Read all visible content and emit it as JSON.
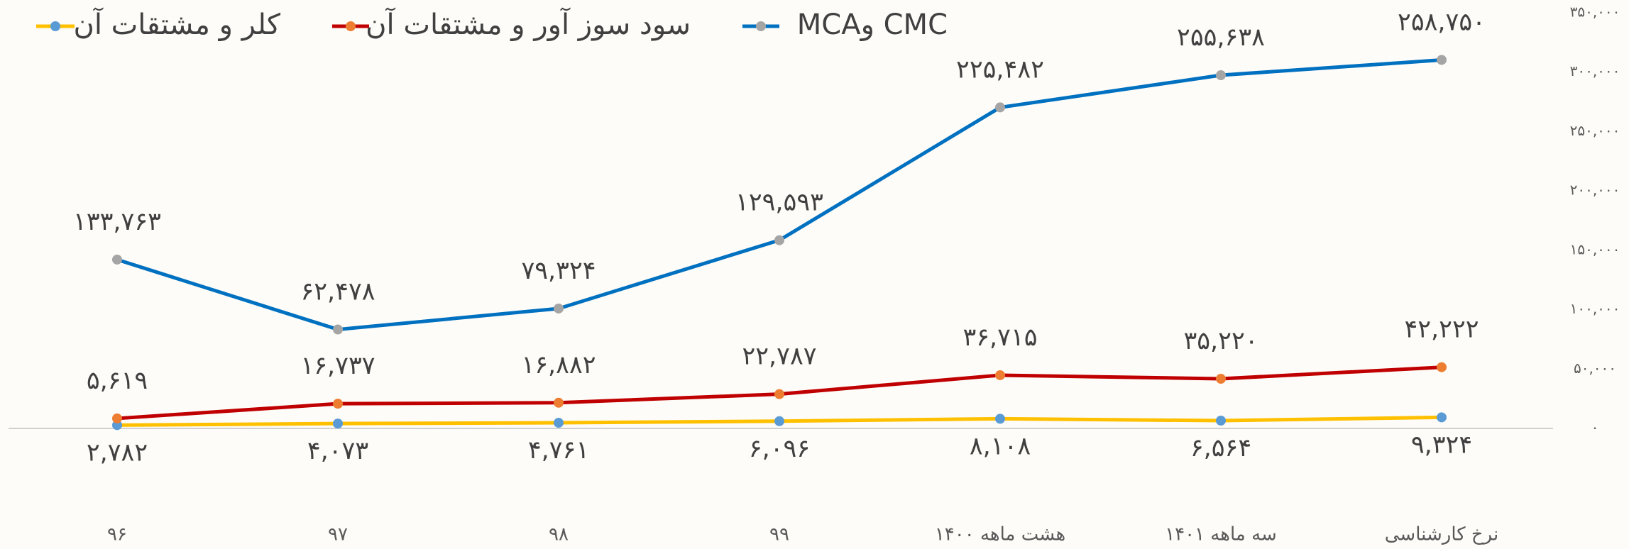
{
  "chart_data": {
    "type": "line",
    "stacked": true,
    "categories": [
      "۹۶",
      "۹۷",
      "۹۸",
      "۹۹",
      "هشت ماهه ۱۴۰۰",
      "سه ماهه ۱۴۰۱",
      "نرخ کارشناسی"
    ],
    "series": [
      {
        "name": "کلر و مشتقات آن",
        "color": "#ffc000",
        "marker_color": "#5b9bd5",
        "values": [
          2782,
          4073,
          4761,
          6096,
          8108,
          6564,
          9324
        ],
        "value_labels": [
          "۲,۷۸۲",
          "۴,۰۷۳",
          "۴,۷۶۱",
          "۶,۰۹۶",
          "۸,۱۰۸",
          "۶,۵۶۴",
          "۹,۳۲۴"
        ]
      },
      {
        "name": "سود سوز آور و مشتقات آن",
        "color": "#c00000",
        "marker_color": "#ed7d31",
        "values": [
          5619,
          16737,
          16882,
          22787,
          36715,
          35220,
          42222
        ],
        "value_labels": [
          "۵,۶۱۹",
          "۱۶,۷۳۷",
          "۱۶,۸۸۲",
          "۲۲,۷۸۷",
          "۳۶,۷۱۵",
          "۳۵,۲۲۰",
          "۴۲,۲۲۲"
        ]
      },
      {
        "name": "MCAو  CMC",
        "color": "#0070c0",
        "marker_color": "#a5a5a5",
        "values": [
          133763,
          62478,
          79324,
          129593,
          225482,
          255638,
          258750
        ],
        "value_labels": [
          "۱۳۳,۷۶۳",
          "۶۲,۴۷۸",
          "۷۹,۳۲۴",
          "۱۲۹,۵۹۳",
          "۲۲۵,۴۸۲",
          "۲۵۵,۶۳۸",
          "۲۵۸,۷۵۰"
        ]
      }
    ],
    "ylim": [
      0,
      350000
    ],
    "yticks": [
      {
        "value": 0,
        "label": "۰"
      },
      {
        "value": 50000,
        "label": "۵۰,۰۰۰"
      },
      {
        "value": 100000,
        "label": "۱۰۰,۰۰۰"
      },
      {
        "value": 150000,
        "label": "۱۵۰,۰۰۰"
      },
      {
        "value": 200000,
        "label": "۲۰۰,۰۰۰"
      },
      {
        "value": 250000,
        "label": "۲۵۰,۰۰۰"
      },
      {
        "value": 300000,
        "label": "۳۰۰,۰۰۰"
      },
      {
        "value": 350000,
        "label": "۳۵۰,۰۰۰"
      }
    ],
    "legend": "top-left"
  }
}
